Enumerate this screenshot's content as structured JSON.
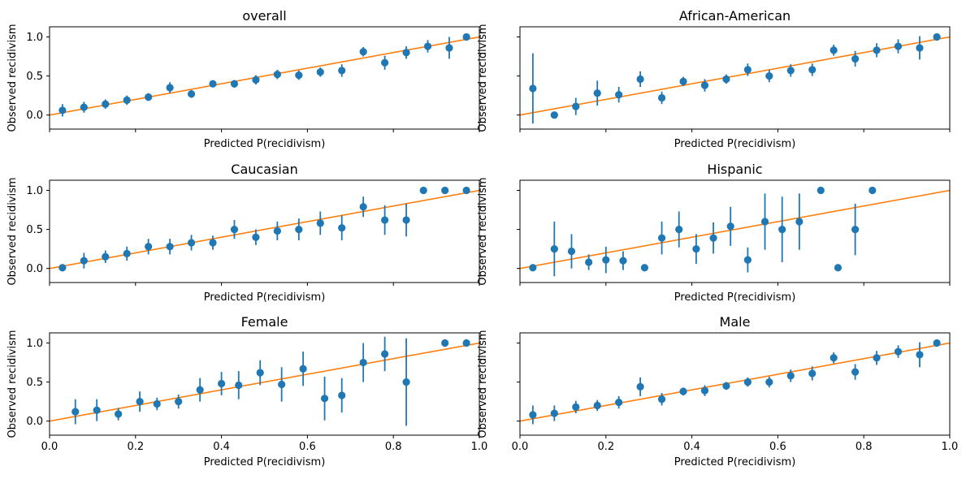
{
  "colors": {
    "points": "#1f77b4",
    "reference_line": "#ff7f0e",
    "axes": "#000000"
  },
  "chart_data": [
    {
      "type": "scatter",
      "title": "overall",
      "xlabel": "Predicted P(recidivism)",
      "ylabel": "Observed recidivism",
      "xlim": [
        0,
        1
      ],
      "ylim": [
        -0.18,
        1.13
      ],
      "xticks": [
        0,
        0.2,
        0.4,
        0.6,
        0.8,
        1
      ],
      "xtick_labels_shown": false,
      "yticks": [
        0,
        0.5,
        1
      ],
      "ytick_labels": [
        "0.0",
        "0.5",
        "1.0"
      ],
      "ytick_labels_shown": true,
      "reference_line": [
        [
          0,
          0
        ],
        [
          1,
          1
        ]
      ],
      "series": [
        {
          "x": [
            0.03,
            0.08,
            0.13,
            0.18,
            0.23,
            0.28,
            0.33,
            0.38,
            0.43,
            0.48,
            0.53,
            0.58,
            0.63,
            0.68,
            0.73,
            0.78,
            0.83,
            0.88,
            0.93,
            0.97
          ],
          "y": [
            0.06,
            0.1,
            0.14,
            0.19,
            0.23,
            0.35,
            0.27,
            0.4,
            0.4,
            0.45,
            0.52,
            0.51,
            0.55,
            0.57,
            0.81,
            0.67,
            0.8,
            0.88,
            0.86,
            1.0
          ],
          "err": [
            0.08,
            0.07,
            0.06,
            0.06,
            0.05,
            0.07,
            0.05,
            0.04,
            0.05,
            0.06,
            0.06,
            0.06,
            0.06,
            0.08,
            0.06,
            0.09,
            0.08,
            0.08,
            0.14,
            0.0
          ]
        }
      ]
    },
    {
      "type": "scatter",
      "title": "African-American",
      "xlabel": "Predicted P(recidivism)",
      "ylabel": "Observed recidivism",
      "xlim": [
        0,
        1
      ],
      "ylim": [
        -0.18,
        1.13
      ],
      "xticks": [
        0,
        0.2,
        0.4,
        0.6,
        0.8,
        1
      ],
      "xtick_labels_shown": false,
      "yticks": [
        0,
        0.5,
        1
      ],
      "ytick_labels_shown": false,
      "reference_line": [
        [
          0,
          0
        ],
        [
          1,
          1
        ]
      ],
      "series": [
        {
          "x": [
            0.03,
            0.08,
            0.13,
            0.18,
            0.23,
            0.28,
            0.33,
            0.38,
            0.43,
            0.48,
            0.53,
            0.58,
            0.63,
            0.68,
            0.73,
            0.78,
            0.83,
            0.88,
            0.93,
            0.97
          ],
          "y": [
            0.34,
            0.0,
            0.11,
            0.28,
            0.26,
            0.46,
            0.22,
            0.43,
            0.38,
            0.46,
            0.58,
            0.5,
            0.57,
            0.58,
            0.83,
            0.72,
            0.83,
            0.88,
            0.86,
            1.0
          ],
          "err": [
            0.45,
            0.0,
            0.11,
            0.16,
            0.1,
            0.1,
            0.08,
            0.06,
            0.08,
            0.06,
            0.08,
            0.08,
            0.08,
            0.08,
            0.07,
            0.1,
            0.09,
            0.09,
            0.15,
            0.0
          ]
        }
      ]
    },
    {
      "type": "scatter",
      "title": "Caucasian",
      "xlabel": "Predicted P(recidivism)",
      "ylabel": "Observed recidivism",
      "xlim": [
        0,
        1
      ],
      "ylim": [
        -0.18,
        1.13
      ],
      "xticks": [
        0,
        0.2,
        0.4,
        0.6,
        0.8,
        1
      ],
      "xtick_labels_shown": false,
      "yticks": [
        0,
        0.5,
        1
      ],
      "ytick_labels": [
        "0.0",
        "0.5",
        "1.0"
      ],
      "ytick_labels_shown": true,
      "reference_line": [
        [
          0,
          0
        ],
        [
          1,
          1
        ]
      ],
      "series": [
        {
          "x": [
            0.03,
            0.08,
            0.13,
            0.18,
            0.23,
            0.28,
            0.33,
            0.38,
            0.43,
            0.48,
            0.53,
            0.58,
            0.63,
            0.68,
            0.73,
            0.78,
            0.83,
            0.87,
            0.92,
            0.97
          ],
          "y": [
            0.01,
            0.1,
            0.15,
            0.19,
            0.28,
            0.28,
            0.33,
            0.33,
            0.5,
            0.4,
            0.48,
            0.5,
            0.58,
            0.52,
            0.79,
            0.62,
            0.62,
            1.0,
            1.0,
            1.0
          ],
          "err": [
            0.02,
            0.1,
            0.08,
            0.09,
            0.1,
            0.1,
            0.1,
            0.09,
            0.12,
            0.1,
            0.12,
            0.14,
            0.15,
            0.16,
            0.13,
            0.19,
            0.21,
            0.0,
            0.0,
            0.0
          ]
        }
      ]
    },
    {
      "type": "scatter",
      "title": "Hispanic",
      "xlabel": "Predicted P(recidivism)",
      "ylabel": "Observed recidivism",
      "xlim": [
        0,
        1
      ],
      "ylim": [
        -0.18,
        1.13
      ],
      "xticks": [
        0,
        0.2,
        0.4,
        0.6,
        0.8,
        1
      ],
      "xtick_labels_shown": false,
      "yticks": [
        0,
        0.5,
        1
      ],
      "ytick_labels_shown": false,
      "reference_line": [
        [
          0,
          0
        ],
        [
          1,
          1
        ]
      ],
      "series": [
        {
          "x": [
            0.03,
            0.08,
            0.12,
            0.16,
            0.2,
            0.24,
            0.29,
            0.33,
            0.37,
            0.41,
            0.45,
            0.49,
            0.53,
            0.57,
            0.61,
            0.65,
            0.7,
            0.74,
            0.78,
            0.82
          ],
          "y": [
            0.01,
            0.25,
            0.22,
            0.08,
            0.11,
            0.1,
            0.01,
            0.39,
            0.5,
            0.25,
            0.39,
            0.54,
            0.11,
            0.6,
            0.5,
            0.6,
            1.0,
            0.01,
            0.5,
            1.0
          ],
          "err": [
            0.0,
            0.35,
            0.22,
            0.1,
            0.17,
            0.12,
            0.0,
            0.21,
            0.23,
            0.19,
            0.2,
            0.25,
            0.16,
            0.36,
            0.42,
            0.36,
            0.0,
            0.0,
            0.33,
            0.0
          ]
        }
      ]
    },
    {
      "type": "scatter",
      "title": "Female",
      "xlabel": "Predicted P(recidivism)",
      "ylabel": "Observed recidivism",
      "xlim": [
        0,
        1
      ],
      "ylim": [
        -0.18,
        1.13
      ],
      "xticks": [
        0,
        0.2,
        0.4,
        0.6,
        0.8,
        1
      ],
      "xtick_labels": [
        "0.0",
        "0.2",
        "0.4",
        "0.6",
        "0.8",
        "1.0"
      ],
      "xtick_labels_shown": true,
      "yticks": [
        0,
        0.5,
        1
      ],
      "ytick_labels": [
        "0.0",
        "0.5",
        "1.0"
      ],
      "ytick_labels_shown": true,
      "reference_line": [
        [
          0,
          0
        ],
        [
          1,
          1
        ]
      ],
      "series": [
        {
          "x": [
            0.06,
            0.11,
            0.16,
            0.21,
            0.25,
            0.3,
            0.35,
            0.4,
            0.44,
            0.49,
            0.54,
            0.59,
            0.64,
            0.68,
            0.73,
            0.78,
            0.83,
            0.92,
            0.97
          ],
          "y": [
            0.12,
            0.14,
            0.09,
            0.25,
            0.22,
            0.25,
            0.4,
            0.48,
            0.46,
            0.62,
            0.47,
            0.67,
            0.29,
            0.33,
            0.75,
            0.86,
            0.5,
            1.0,
            1.0
          ],
          "err": [
            0.16,
            0.14,
            0.08,
            0.13,
            0.08,
            0.09,
            0.15,
            0.15,
            0.18,
            0.16,
            0.22,
            0.22,
            0.28,
            0.22,
            0.25,
            0.22,
            0.56,
            0.0,
            0.0
          ]
        }
      ]
    },
    {
      "type": "scatter",
      "title": "Male",
      "xlabel": "Predicted P(recidivism)",
      "ylabel": "Observed recidivism",
      "xlim": [
        0,
        1
      ],
      "ylim": [
        -0.18,
        1.13
      ],
      "xticks": [
        0,
        0.2,
        0.4,
        0.6,
        0.8,
        1
      ],
      "xtick_labels": [
        "0.0",
        "0.2",
        "0.4",
        "0.6",
        "0.8",
        "1.0"
      ],
      "xtick_labels_shown": true,
      "yticks": [
        0,
        0.5,
        1
      ],
      "ytick_labels_shown": false,
      "reference_line": [
        [
          0,
          0
        ],
        [
          1,
          1
        ]
      ],
      "series": [
        {
          "x": [
            0.03,
            0.08,
            0.13,
            0.18,
            0.23,
            0.28,
            0.33,
            0.38,
            0.43,
            0.48,
            0.53,
            0.58,
            0.63,
            0.68,
            0.73,
            0.78,
            0.83,
            0.88,
            0.93,
            0.97
          ],
          "y": [
            0.08,
            0.1,
            0.18,
            0.2,
            0.24,
            0.44,
            0.28,
            0.38,
            0.39,
            0.45,
            0.5,
            0.5,
            0.58,
            0.61,
            0.81,
            0.63,
            0.81,
            0.89,
            0.85,
            1.0
          ],
          "err": [
            0.12,
            0.1,
            0.08,
            0.07,
            0.08,
            0.12,
            0.08,
            0.05,
            0.07,
            0.05,
            0.06,
            0.07,
            0.08,
            0.09,
            0.07,
            0.1,
            0.09,
            0.08,
            0.16,
            0.0
          ]
        }
      ]
    }
  ]
}
